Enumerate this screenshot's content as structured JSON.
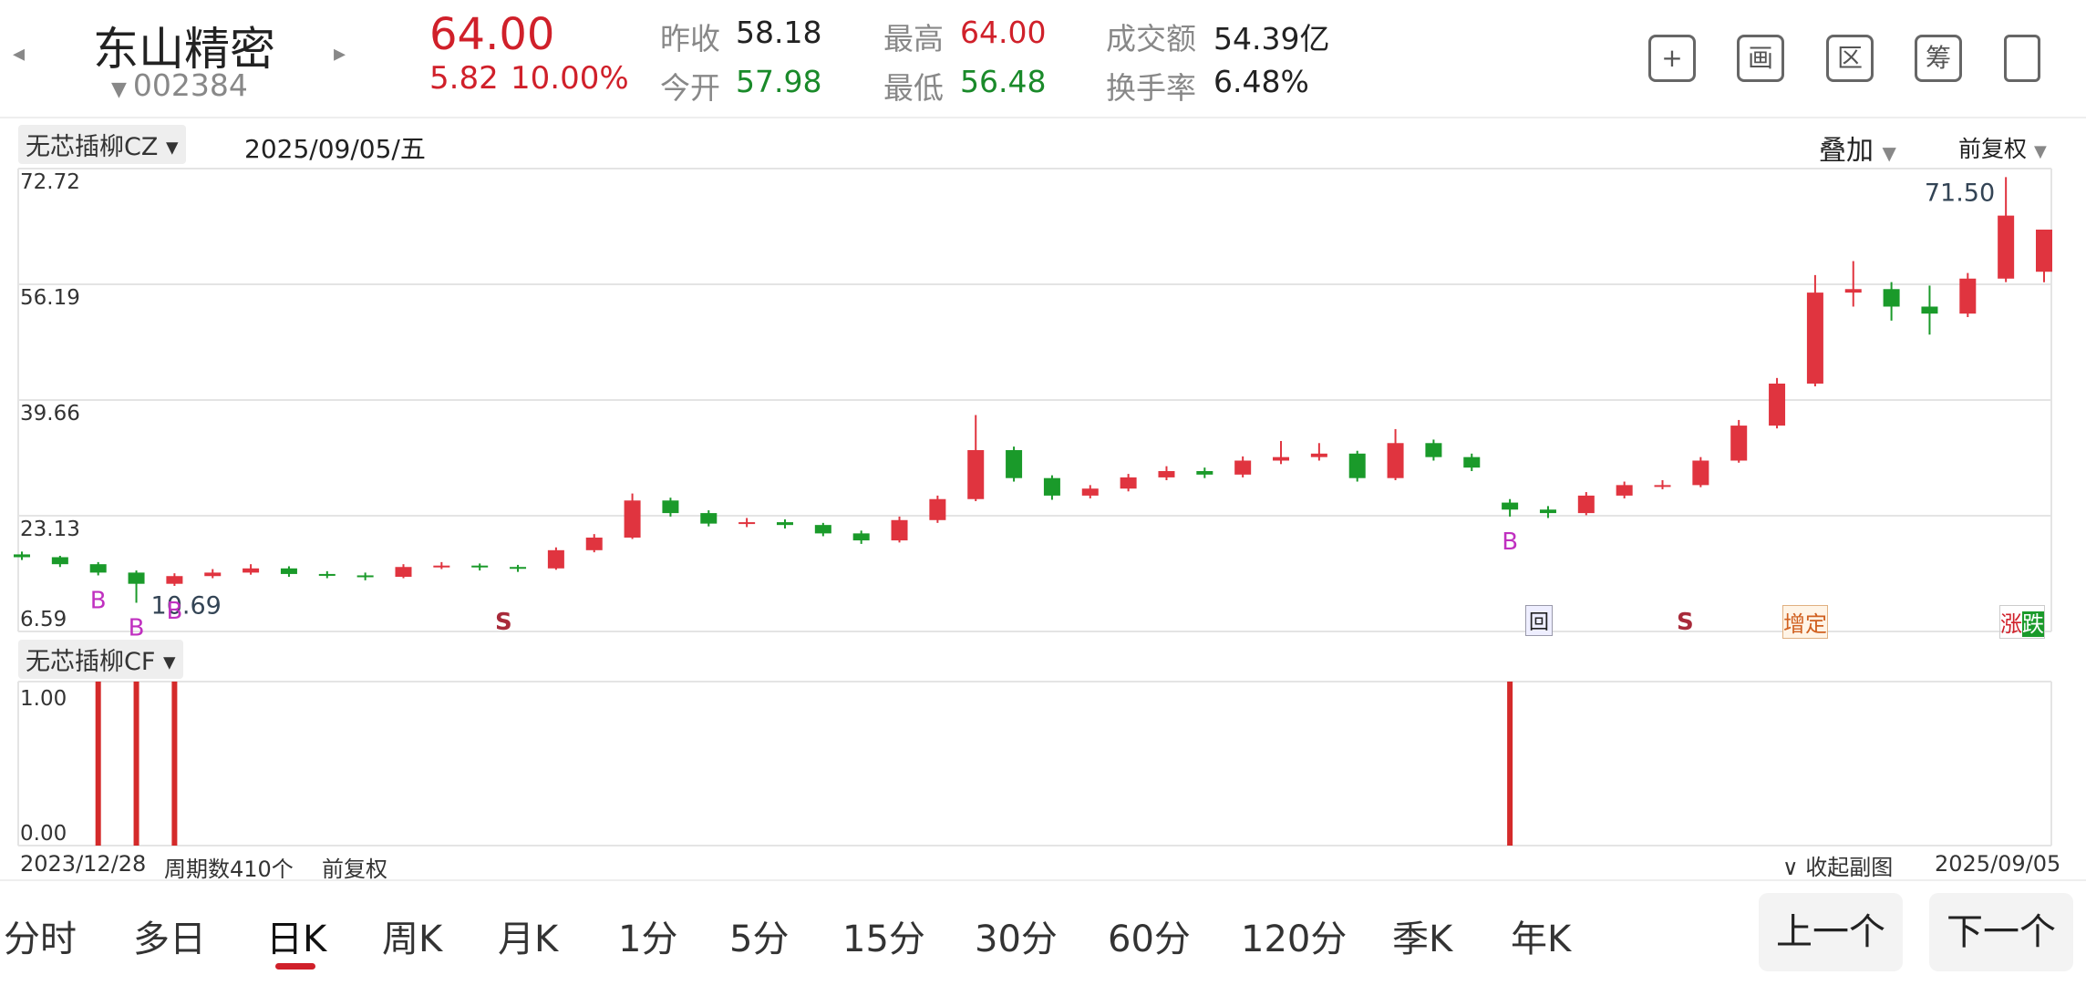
{
  "header": {
    "name": "东山精密",
    "code": "002384",
    "price": "64.00",
    "change": "5.82",
    "change_pct": "10.00%",
    "stats": [
      {
        "label": "昨收",
        "value": "58.18"
      },
      {
        "label": "今开",
        "value": "57.98"
      },
      {
        "label": "最高",
        "value": "64.00"
      },
      {
        "label": "最低",
        "value": "56.48"
      },
      {
        "label": "成交额",
        "value": "54.39亿"
      },
      {
        "label": "换手率",
        "value": "6.48%"
      }
    ]
  },
  "toolbar": {
    "icons": [
      "画",
      "区",
      "筹"
    ]
  },
  "chart_data": {
    "type": "candlestick",
    "indicator": "无芯插柳CZ",
    "date": "2025/09/05/五",
    "overlay": "叠加",
    "adjust": "前复权",
    "ylim": [
      6.59,
      72.72
    ],
    "yticks": [
      6.59,
      23.13,
      39.66,
      56.19,
      72.72
    ],
    "up_color": "#e0343f",
    "down_color": "#1a9a2a",
    "ohlc": [
      [
        17.6,
        18.0,
        16.8,
        17.2
      ],
      [
        17.2,
        17.4,
        15.8,
        16.2
      ],
      [
        16.2,
        16.5,
        14.6,
        15.0
      ],
      [
        15.0,
        15.3,
        10.69,
        13.4
      ],
      [
        13.4,
        14.9,
        13.1,
        14.5
      ],
      [
        14.5,
        15.5,
        14.2,
        15.0
      ],
      [
        15.0,
        16.2,
        14.7,
        15.6
      ],
      [
        15.6,
        15.9,
        14.4,
        14.8
      ],
      [
        14.8,
        15.2,
        14.2,
        14.6
      ],
      [
        14.6,
        15.0,
        13.9,
        14.4
      ],
      [
        14.4,
        16.2,
        14.2,
        15.8
      ],
      [
        15.8,
        16.5,
        15.5,
        16.0
      ],
      [
        16.0,
        16.3,
        15.3,
        15.8
      ],
      [
        15.8,
        16.1,
        15.1,
        15.6
      ],
      [
        15.6,
        18.6,
        15.4,
        18.2
      ],
      [
        18.2,
        20.5,
        17.9,
        20.0
      ],
      [
        20.0,
        26.3,
        19.8,
        25.3
      ],
      [
        25.3,
        25.7,
        23.0,
        23.5
      ],
      [
        23.5,
        23.9,
        21.6,
        22.0
      ],
      [
        22.0,
        22.8,
        21.5,
        22.2
      ],
      [
        22.2,
        22.6,
        21.3,
        21.8
      ],
      [
        21.8,
        22.1,
        20.2,
        20.6
      ],
      [
        20.6,
        21.0,
        19.1,
        19.6
      ],
      [
        19.6,
        23.0,
        19.3,
        22.5
      ],
      [
        22.5,
        26.0,
        22.1,
        25.5
      ],
      [
        25.5,
        37.5,
        25.2,
        32.5
      ],
      [
        32.5,
        33.0,
        28.0,
        28.5
      ],
      [
        28.5,
        28.9,
        25.4,
        26.0
      ],
      [
        26.0,
        27.5,
        25.6,
        27.0
      ],
      [
        27.0,
        29.1,
        26.6,
        28.6
      ],
      [
        28.6,
        30.2,
        28.2,
        29.5
      ],
      [
        29.5,
        30.0,
        28.5,
        29.0
      ],
      [
        29.0,
        31.6,
        28.6,
        31.0
      ],
      [
        31.0,
        33.8,
        30.5,
        31.5
      ],
      [
        31.5,
        33.5,
        31.0,
        32.0
      ],
      [
        32.0,
        32.4,
        28.0,
        28.5
      ],
      [
        28.5,
        35.5,
        28.2,
        33.5
      ],
      [
        33.5,
        34.0,
        31.0,
        31.5
      ],
      [
        31.5,
        32.0,
        29.5,
        30.0
      ],
      [
        25.0,
        25.5,
        23.0,
        24.0
      ],
      [
        24.0,
        24.5,
        22.8,
        23.5
      ],
      [
        23.5,
        26.5,
        23.2,
        26.0
      ],
      [
        26.0,
        28.0,
        25.6,
        27.5
      ],
      [
        27.5,
        28.2,
        26.9,
        27.5
      ],
      [
        27.5,
        31.5,
        27.2,
        31.0
      ],
      [
        31.0,
        36.8,
        30.7,
        36.0
      ],
      [
        36.0,
        42.8,
        35.6,
        42.0
      ],
      [
        42.0,
        57.5,
        41.6,
        55.0
      ],
      [
        55.0,
        59.5,
        53.0,
        55.5
      ],
      [
        55.5,
        56.5,
        51.0,
        53.0
      ],
      [
        53.0,
        56.0,
        49.0,
        52.0
      ],
      [
        52.0,
        57.8,
        51.5,
        57.0
      ],
      [
        57.0,
        71.5,
        56.5,
        66.0
      ],
      [
        57.98,
        64.0,
        56.48,
        64.0
      ]
    ],
    "high_label": "71.50",
    "low_label": "10.69",
    "signal_label": "B",
    "markers": {
      "s": "S",
      "hui": "回",
      "zengding": "增定",
      "zhang": "涨",
      "die": "跌"
    },
    "sub": {
      "indicator": "无芯插柳CF",
      "ylim": [
        0,
        1
      ],
      "yticks": [
        {
          "value": 1,
          "label": "1.00"
        },
        {
          "value": 0,
          "label": "0.00"
        }
      ],
      "color": "#d42a2a",
      "values": [
        0,
        0,
        1,
        1,
        1,
        0,
        0,
        0,
        0,
        0,
        0,
        0,
        0,
        0,
        0,
        0,
        0,
        0,
        0,
        0,
        0,
        0,
        0,
        0,
        0,
        0,
        0,
        0,
        0,
        0,
        0,
        0,
        0,
        0,
        0,
        0,
        0,
        0,
        0,
        1,
        0,
        0,
        0,
        0,
        0,
        0,
        0,
        0,
        0,
        0,
        0,
        0,
        0,
        0
      ]
    },
    "footer": {
      "start": "2023/12/28",
      "count": "周期数410个",
      "adjust": "前复权",
      "collapse": "收起副图",
      "end": "2025/09/05"
    }
  },
  "tabs": [
    "分时",
    "多日",
    "日K",
    "周K",
    "月K",
    "1分",
    "5分",
    "15分",
    "30分",
    "60分",
    "120分",
    "季K",
    "年K"
  ],
  "buttons": [
    "上一个",
    "下一个"
  ]
}
